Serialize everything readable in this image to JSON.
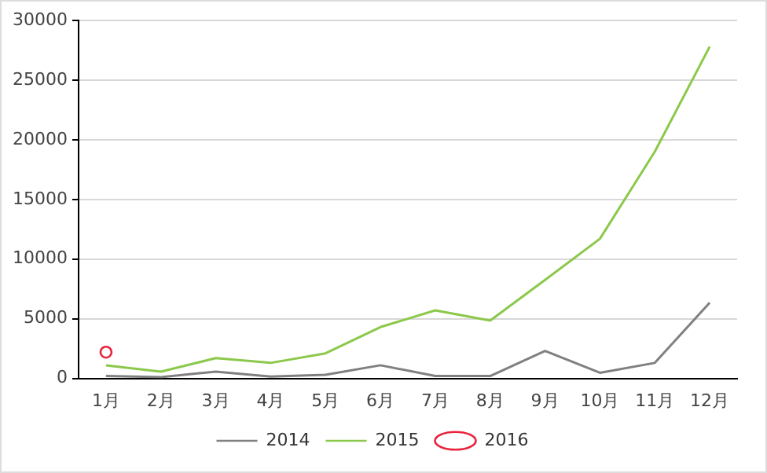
{
  "chart_data": {
    "type": "line",
    "categories": [
      "1月",
      "2月",
      "3月",
      "4月",
      "5月",
      "6月",
      "7月",
      "8月",
      "9月",
      "10月",
      "11月",
      "12月"
    ],
    "series": [
      {
        "name": "2014",
        "color": "#808080",
        "marker": "none",
        "values": [
          200,
          100,
          570,
          150,
          300,
          1100,
          200,
          200,
          2300,
          470,
          1300,
          6350
        ]
      },
      {
        "name": "2015",
        "color": "#8cc84b",
        "marker": "none",
        "values": [
          1100,
          570,
          1700,
          1300,
          2100,
          4300,
          5700,
          4850,
          8250,
          11700,
          19000,
          27800
        ]
      },
      {
        "name": "2016",
        "color": "#e8243c",
        "marker": "circle",
        "values": [
          2200,
          null,
          null,
          null,
          null,
          null,
          null,
          null,
          null,
          null,
          null,
          null
        ]
      }
    ],
    "ylim": [
      0,
      30000
    ],
    "yticks": [
      0,
      5000,
      10000,
      15000,
      20000,
      25000,
      30000
    ],
    "grid": "y",
    "legend": "bottom",
    "line_style": "solid"
  }
}
